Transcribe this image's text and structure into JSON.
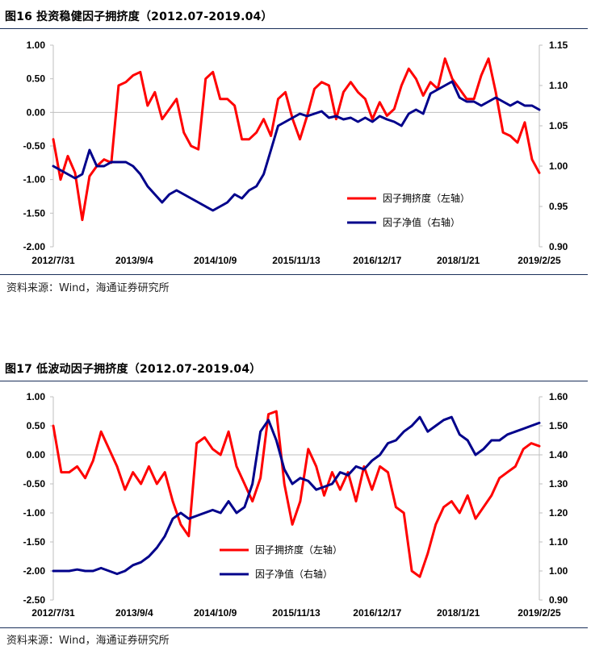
{
  "source_text": "资料来源：Wind，海通证券研究所",
  "chart_data": [
    {
      "type": "line",
      "title": "图16 投资稳健因子拥挤度（2012.07-2019.04）",
      "x_tick_labels": [
        "2012/7/31",
        "2013/9/4",
        "2014/10/9",
        "2015/11/13",
        "2016/12/17",
        "2018/1/21",
        "2019/2/25"
      ],
      "y_left": {
        "ylim": [
          -2.0,
          1.0
        ],
        "tick_labels": [
          "1.00",
          "0.50",
          "0.00",
          "-0.50",
          "-1.00",
          "-1.50",
          "-2.00"
        ]
      },
      "y_right": {
        "ylim": [
          0.9,
          1.15
        ],
        "tick_labels": [
          "1.15",
          "1.10",
          "1.05",
          "1.00",
          "0.95",
          "0.90"
        ]
      },
      "legend_position": "center-right",
      "series": [
        {
          "name": "因子拥挤度（左轴）",
          "axis": "left",
          "color": "#ff0000",
          "points": [
            [
              0,
              -0.4
            ],
            [
              1,
              -1.0
            ],
            [
              2,
              -0.65
            ],
            [
              3,
              -0.9
            ],
            [
              4,
              -1.6
            ],
            [
              5,
              -0.95
            ],
            [
              6,
              -0.8
            ],
            [
              7,
              -0.7
            ],
            [
              8,
              -0.75
            ],
            [
              9,
              0.4
            ],
            [
              10,
              0.45
            ],
            [
              11,
              0.55
            ],
            [
              12,
              0.6
            ],
            [
              13,
              0.1
            ],
            [
              14,
              0.3
            ],
            [
              15,
              -0.1
            ],
            [
              16,
              0.05
            ],
            [
              17,
              0.2
            ],
            [
              18,
              -0.3
            ],
            [
              19,
              -0.5
            ],
            [
              20,
              -0.55
            ],
            [
              21,
              0.5
            ],
            [
              22,
              0.6
            ],
            [
              23,
              0.2
            ],
            [
              24,
              0.2
            ],
            [
              25,
              0.1
            ],
            [
              26,
              -0.4
            ],
            [
              27,
              -0.4
            ],
            [
              28,
              -0.3
            ],
            [
              29,
              -0.1
            ],
            [
              30,
              -0.35
            ],
            [
              31,
              0.2
            ],
            [
              32,
              0.3
            ],
            [
              33,
              -0.1
            ],
            [
              34,
              -0.4
            ],
            [
              35,
              -0.05
            ],
            [
              36,
              0.35
            ],
            [
              37,
              0.45
            ],
            [
              38,
              0.4
            ],
            [
              39,
              -0.1
            ],
            [
              40,
              0.3
            ],
            [
              41,
              0.45
            ],
            [
              42,
              0.3
            ],
            [
              43,
              0.2
            ],
            [
              44,
              -0.1
            ],
            [
              45,
              0.15
            ],
            [
              46,
              -0.05
            ],
            [
              47,
              0.05
            ],
            [
              48,
              0.4
            ],
            [
              49,
              0.65
            ],
            [
              50,
              0.5
            ],
            [
              51,
              0.25
            ],
            [
              52,
              0.45
            ],
            [
              53,
              0.35
            ],
            [
              54,
              0.8
            ],
            [
              55,
              0.5
            ],
            [
              56,
              0.35
            ],
            [
              57,
              0.2
            ],
            [
              58,
              0.2
            ],
            [
              59,
              0.55
            ],
            [
              60,
              0.8
            ],
            [
              61,
              0.3
            ],
            [
              62,
              -0.3
            ],
            [
              63,
              -0.35
            ],
            [
              64,
              -0.45
            ],
            [
              65,
              -0.15
            ],
            [
              66,
              -0.7
            ],
            [
              67,
              -0.9
            ]
          ]
        },
        {
          "name": "因子净值（右轴）",
          "axis": "right",
          "color": "#00008b",
          "points": [
            [
              0,
              1.0
            ],
            [
              1,
              0.995
            ],
            [
              2,
              0.99
            ],
            [
              3,
              0.985
            ],
            [
              4,
              0.99
            ],
            [
              5,
              1.02
            ],
            [
              6,
              1.0
            ],
            [
              7,
              1.0
            ],
            [
              8,
              1.005
            ],
            [
              9,
              1.005
            ],
            [
              10,
              1.005
            ],
            [
              11,
              1.0
            ],
            [
              12,
              0.99
            ],
            [
              13,
              0.975
            ],
            [
              14,
              0.965
            ],
            [
              15,
              0.955
            ],
            [
              16,
              0.965
            ],
            [
              17,
              0.97
            ],
            [
              18,
              0.965
            ],
            [
              19,
              0.96
            ],
            [
              20,
              0.955
            ],
            [
              21,
              0.95
            ],
            [
              22,
              0.945
            ],
            [
              23,
              0.95
            ],
            [
              24,
              0.955
            ],
            [
              25,
              0.965
            ],
            [
              26,
              0.96
            ],
            [
              27,
              0.97
            ],
            [
              28,
              0.975
            ],
            [
              29,
              0.99
            ],
            [
              30,
              1.02
            ],
            [
              31,
              1.05
            ],
            [
              32,
              1.055
            ],
            [
              33,
              1.06
            ],
            [
              34,
              1.065
            ],
            [
              35,
              1.062
            ],
            [
              36,
              1.065
            ],
            [
              37,
              1.068
            ],
            [
              38,
              1.06
            ],
            [
              39,
              1.062
            ],
            [
              40,
              1.058
            ],
            [
              41,
              1.06
            ],
            [
              42,
              1.055
            ],
            [
              43,
              1.06
            ],
            [
              44,
              1.055
            ],
            [
              45,
              1.062
            ],
            [
              46,
              1.058
            ],
            [
              47,
              1.055
            ],
            [
              48,
              1.05
            ],
            [
              49,
              1.065
            ],
            [
              50,
              1.07
            ],
            [
              51,
              1.065
            ],
            [
              52,
              1.09
            ],
            [
              53,
              1.095
            ],
            [
              54,
              1.1
            ],
            [
              55,
              1.105
            ],
            [
              56,
              1.085
            ],
            [
              57,
              1.08
            ],
            [
              58,
              1.08
            ],
            [
              59,
              1.075
            ],
            [
              60,
              1.08
            ],
            [
              61,
              1.085
            ],
            [
              62,
              1.08
            ],
            [
              63,
              1.075
            ],
            [
              64,
              1.08
            ],
            [
              65,
              1.075
            ],
            [
              66,
              1.075
            ],
            [
              67,
              1.07
            ]
          ]
        }
      ]
    },
    {
      "type": "line",
      "title": "图17 低波动因子拥挤度（2012.07-2019.04）",
      "x_tick_labels": [
        "2012/7/31",
        "2013/9/4",
        "2014/10/9",
        "2015/11/13",
        "2016/12/17",
        "2018/1/21",
        "2019/2/25"
      ],
      "y_left": {
        "ylim": [
          -2.5,
          1.0
        ],
        "tick_labels": [
          "1.00",
          "0.50",
          "0.00",
          "-0.50",
          "-1.00",
          "-1.50",
          "-2.00",
          "-2.50"
        ]
      },
      "y_right": {
        "ylim": [
          0.9,
          1.6
        ],
        "tick_labels": [
          "1.60",
          "1.50",
          "1.40",
          "1.30",
          "1.20",
          "1.10",
          "1.00",
          "0.90"
        ]
      },
      "legend_position": "lower-left",
      "series": [
        {
          "name": "因子拥挤度（左轴）",
          "axis": "left",
          "color": "#ff0000",
          "points": [
            [
              0,
              0.5
            ],
            [
              1,
              -0.3
            ],
            [
              2,
              -0.3
            ],
            [
              3,
              -0.2
            ],
            [
              4,
              -0.4
            ],
            [
              5,
              -0.1
            ],
            [
              6,
              0.4
            ],
            [
              7,
              0.1
            ],
            [
              8,
              -0.2
            ],
            [
              9,
              -0.6
            ],
            [
              10,
              -0.3
            ],
            [
              11,
              -0.5
            ],
            [
              12,
              -0.2
            ],
            [
              13,
              -0.5
            ],
            [
              14,
              -0.3
            ],
            [
              15,
              -0.8
            ],
            [
              16,
              -1.2
            ],
            [
              17,
              -1.4
            ],
            [
              18,
              0.2
            ],
            [
              19,
              0.3
            ],
            [
              20,
              0.1
            ],
            [
              21,
              0.0
            ],
            [
              22,
              0.4
            ],
            [
              23,
              -0.2
            ],
            [
              24,
              -0.5
            ],
            [
              25,
              -0.8
            ],
            [
              26,
              -0.4
            ],
            [
              27,
              0.7
            ],
            [
              28,
              0.75
            ],
            [
              29,
              -0.5
            ],
            [
              30,
              -1.2
            ],
            [
              31,
              -0.8
            ],
            [
              32,
              0.1
            ],
            [
              33,
              -0.2
            ],
            [
              34,
              -0.7
            ],
            [
              35,
              -0.3
            ],
            [
              36,
              -0.6
            ],
            [
              37,
              -0.3
            ],
            [
              38,
              -0.8
            ],
            [
              39,
              -0.2
            ],
            [
              40,
              -0.6
            ],
            [
              41,
              -0.2
            ],
            [
              42,
              -0.3
            ],
            [
              43,
              -0.9
            ],
            [
              44,
              -1.0
            ],
            [
              45,
              -2.0
            ],
            [
              46,
              -2.1
            ],
            [
              47,
              -1.7
            ],
            [
              48,
              -1.2
            ],
            [
              49,
              -0.9
            ],
            [
              50,
              -0.8
            ],
            [
              51,
              -1.0
            ],
            [
              52,
              -0.7
            ],
            [
              53,
              -1.1
            ],
            [
              54,
              -0.9
            ],
            [
              55,
              -0.7
            ],
            [
              56,
              -0.4
            ],
            [
              57,
              -0.3
            ],
            [
              58,
              -0.2
            ],
            [
              59,
              0.1
            ],
            [
              60,
              0.2
            ],
            [
              61,
              0.15
            ]
          ]
        },
        {
          "name": "因子净值（右轴）",
          "axis": "right",
          "color": "#00008b",
          "points": [
            [
              0,
              1.0
            ],
            [
              1,
              1.0
            ],
            [
              2,
              1.0
            ],
            [
              3,
              1.005
            ],
            [
              4,
              1.0
            ],
            [
              5,
              1.0
            ],
            [
              6,
              1.01
            ],
            [
              7,
              1.0
            ],
            [
              8,
              0.99
            ],
            [
              9,
              1.0
            ],
            [
              10,
              1.02
            ],
            [
              11,
              1.03
            ],
            [
              12,
              1.05
            ],
            [
              13,
              1.08
            ],
            [
              14,
              1.12
            ],
            [
              15,
              1.18
            ],
            [
              16,
              1.2
            ],
            [
              17,
              1.18
            ],
            [
              18,
              1.19
            ],
            [
              19,
              1.2
            ],
            [
              20,
              1.21
            ],
            [
              21,
              1.2
            ],
            [
              22,
              1.24
            ],
            [
              23,
              1.2
            ],
            [
              24,
              1.22
            ],
            [
              25,
              1.3
            ],
            [
              26,
              1.48
            ],
            [
              27,
              1.52
            ],
            [
              28,
              1.45
            ],
            [
              29,
              1.35
            ],
            [
              30,
              1.3
            ],
            [
              31,
              1.32
            ],
            [
              32,
              1.31
            ],
            [
              33,
              1.28
            ],
            [
              34,
              1.29
            ],
            [
              35,
              1.3
            ],
            [
              36,
              1.34
            ],
            [
              37,
              1.33
            ],
            [
              38,
              1.36
            ],
            [
              39,
              1.35
            ],
            [
              40,
              1.38
            ],
            [
              41,
              1.4
            ],
            [
              42,
              1.44
            ],
            [
              43,
              1.45
            ],
            [
              44,
              1.48
            ],
            [
              45,
              1.5
            ],
            [
              46,
              1.53
            ],
            [
              47,
              1.48
            ],
            [
              48,
              1.5
            ],
            [
              49,
              1.52
            ],
            [
              50,
              1.53
            ],
            [
              51,
              1.47
            ],
            [
              52,
              1.45
            ],
            [
              53,
              1.4
            ],
            [
              54,
              1.42
            ],
            [
              55,
              1.45
            ],
            [
              56,
              1.45
            ],
            [
              57,
              1.47
            ],
            [
              58,
              1.48
            ],
            [
              59,
              1.49
            ],
            [
              60,
              1.5
            ],
            [
              61,
              1.51
            ]
          ]
        }
      ]
    }
  ]
}
